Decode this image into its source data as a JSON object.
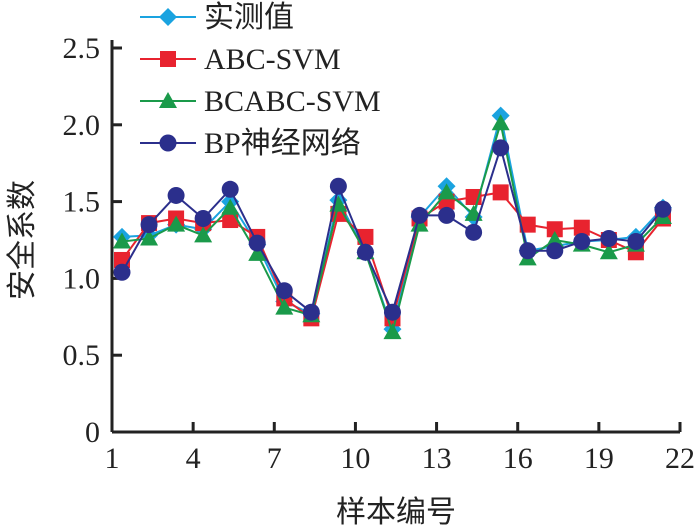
{
  "chart_data": {
    "type": "line",
    "title": "",
    "xlabel": "样本编号",
    "ylabel": "安全系数",
    "x": [
      1,
      2,
      3,
      4,
      5,
      6,
      7,
      8,
      9,
      10,
      11,
      12,
      13,
      14,
      15,
      16,
      17,
      18,
      19,
      20,
      21
    ],
    "x_ticks": [
      "1",
      "4",
      "7",
      "10",
      "13",
      "16",
      "19",
      "22"
    ],
    "y_ticks": [
      "0",
      "0.5",
      "1.0",
      "1.5",
      "2.0",
      "2.5"
    ],
    "ylim": [
      0,
      2.5
    ],
    "legend_position": "top-left",
    "series": [
      {
        "name": "实测值",
        "color": "#1aa3e0",
        "marker": "diamond",
        "values": [
          1.27,
          1.28,
          1.35,
          1.32,
          1.5,
          1.22,
          0.85,
          0.77,
          1.51,
          1.17,
          0.67,
          1.4,
          1.6,
          1.4,
          2.06,
          1.18,
          1.21,
          1.24,
          1.25,
          1.27,
          1.46
        ]
      },
      {
        "name": "ABC-SVM",
        "color": "#e8232f",
        "marker": "square",
        "values": [
          1.12,
          1.36,
          1.39,
          1.36,
          1.38,
          1.27,
          0.87,
          0.74,
          1.42,
          1.27,
          0.74,
          1.39,
          1.5,
          1.53,
          1.56,
          1.35,
          1.32,
          1.33,
          1.25,
          1.17,
          1.39
        ]
      },
      {
        "name": "BCABC-SVM",
        "color": "#1a9a4a",
        "marker": "triangle",
        "values": [
          1.24,
          1.26,
          1.35,
          1.28,
          1.46,
          1.16,
          0.81,
          0.76,
          1.48,
          1.17,
          0.65,
          1.35,
          1.56,
          1.42,
          2.01,
          1.13,
          1.25,
          1.22,
          1.17,
          1.22,
          1.4
        ]
      },
      {
        "name": "BP神经网络",
        "color": "#2b2f8c",
        "marker": "circle",
        "values": [
          1.04,
          1.35,
          1.54,
          1.39,
          1.58,
          1.23,
          0.92,
          0.78,
          1.6,
          1.17,
          0.78,
          1.41,
          1.41,
          1.3,
          1.85,
          1.18,
          1.18,
          1.24,
          1.26,
          1.24,
          1.45
        ]
      }
    ]
  }
}
